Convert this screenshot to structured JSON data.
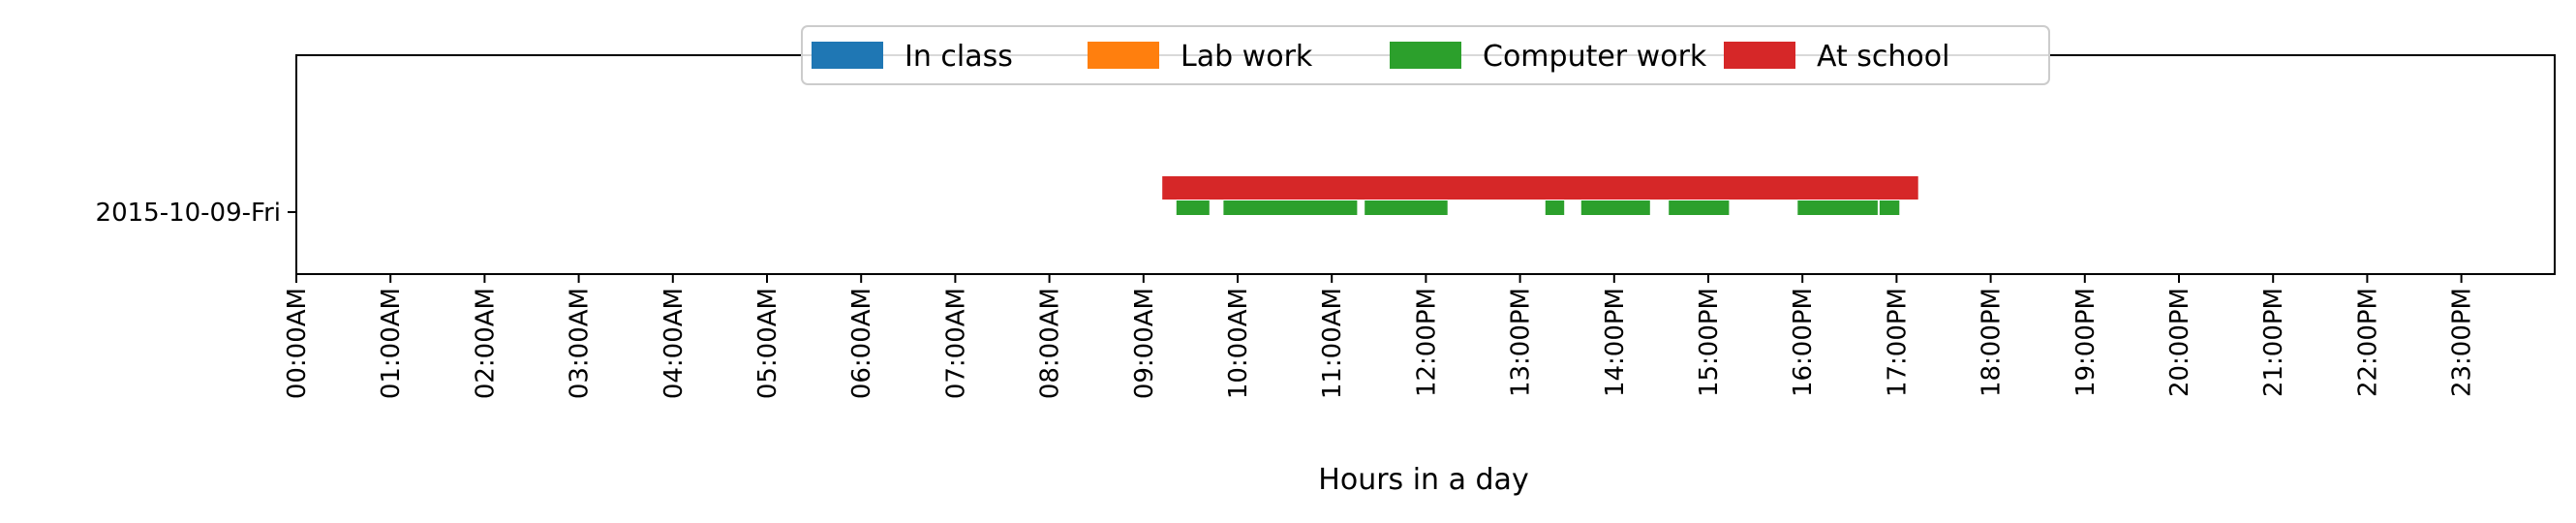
{
  "chart_data": {
    "type": "timeline",
    "xlabel": "Hours in a day",
    "xlim": [
      0,
      24
    ],
    "x_ticks": [
      "00:00AM",
      "01:00AM",
      "02:00AM",
      "03:00AM",
      "04:00AM",
      "05:00AM",
      "06:00AM",
      "07:00AM",
      "08:00AM",
      "09:00AM",
      "10:00AM",
      "11:00AM",
      "12:00PM",
      "13:00PM",
      "14:00PM",
      "15:00PM",
      "16:00PM",
      "17:00PM",
      "18:00PM",
      "19:00PM",
      "20:00PM",
      "21:00PM",
      "22:00PM",
      "23:00PM"
    ],
    "categories": [
      "2015-10-09-Fri"
    ],
    "legend_position": "top-center",
    "grid": false,
    "series": [
      {
        "name": "In class",
        "color": "#1f77b4",
        "lane": "lower",
        "intervals": []
      },
      {
        "name": "Lab work",
        "color": "#ff7f0e",
        "lane": "lower",
        "intervals": []
      },
      {
        "name": "Computer work",
        "color": "#2ca02c",
        "lane": "lower",
        "intervals": [
          [
            9.35,
            9.7
          ],
          [
            9.85,
            11.27
          ],
          [
            11.35,
            12.23
          ],
          [
            13.27,
            13.47
          ],
          [
            13.65,
            14.38
          ],
          [
            14.58,
            15.22
          ],
          [
            15.95,
            16.8
          ],
          [
            16.82,
            17.03
          ]
        ]
      },
      {
        "name": "At school",
        "color": "#d62728",
        "lane": "upper",
        "intervals": [
          [
            9.2,
            17.23
          ]
        ]
      }
    ]
  }
}
